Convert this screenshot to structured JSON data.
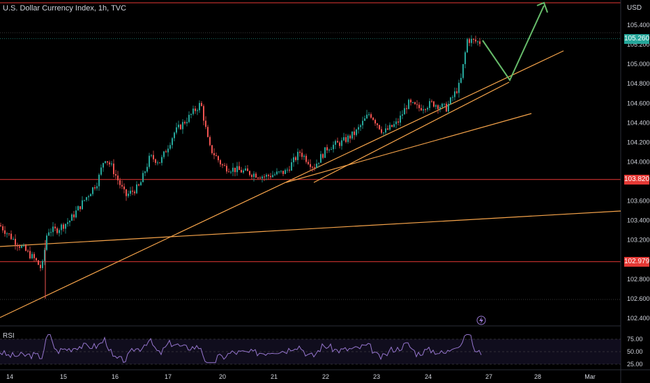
{
  "header": {
    "symbol_title": "U.S. Dollar Currency Index, 1h, TVC",
    "currency": "USD"
  },
  "price_axis": {
    "ticks": [
      "105.400",
      "105.200",
      "105.000",
      "104.800",
      "104.600",
      "104.400",
      "104.200",
      "104.000",
      "103.800",
      "103.600",
      "103.400",
      "103.200",
      "103.000",
      "102.800",
      "102.600",
      "102.400"
    ],
    "tick_values": [
      105.4,
      105.2,
      105.0,
      104.8,
      104.6,
      104.4,
      104.2,
      104.0,
      103.8,
      103.6,
      103.4,
      103.2,
      103.0,
      102.8,
      102.6,
      102.4
    ]
  },
  "price_tags": [
    {
      "label": "105.260",
      "value": 105.26,
      "color": "#26a69a"
    },
    {
      "label": "103.820",
      "value": 103.82,
      "color": "#e53935"
    },
    {
      "label": "102.979",
      "value": 102.979,
      "color": "#e53935"
    }
  ],
  "time_axis": {
    "labels": [
      "14",
      "15",
      "16",
      "17",
      "20",
      "21",
      "22",
      "23",
      "24",
      "27",
      "28",
      "Mar"
    ]
  },
  "rsi": {
    "label": "RSI",
    "ticks": [
      "75.00",
      "50.00",
      "25.00"
    ],
    "tick_values": [
      75,
      50,
      25
    ]
  },
  "colors": {
    "up": "#26a69a",
    "down": "#ef5350",
    "hline": "#e53935",
    "trend": "#f5a34a",
    "projection": "#66bb6a",
    "rsi_line": "#9575cd"
  },
  "icons": {
    "lightning": "lightning-icon"
  }
}
